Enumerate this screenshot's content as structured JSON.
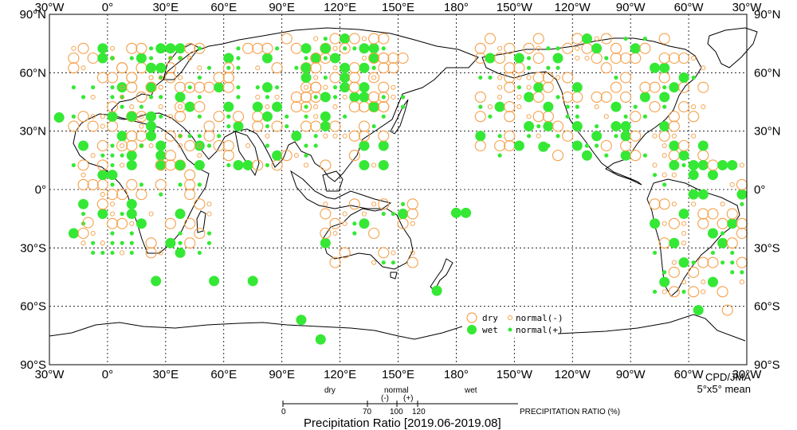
{
  "map": {
    "lon_labels": [
      "30°W",
      "0°",
      "30°E",
      "60°E",
      "90°E",
      "120°E",
      "150°E",
      "180°",
      "150°W",
      "120°W",
      "90°W",
      "60°W",
      "30°W"
    ],
    "lat_labels": [
      "90°N",
      "60°N",
      "30°N",
      "0°",
      "30°S",
      "60°S",
      "90°S"
    ],
    "colors": {
      "dry": "#f5a04a",
      "wet": "#35e835",
      "coast": "#000000",
      "grid": "#000000"
    }
  },
  "legend": {
    "dry": "dry",
    "wet": "wet",
    "normal_minus": "normal(-)",
    "normal_plus": "normal(+)"
  },
  "credit": {
    "line1": "CPD/JMA",
    "line2": "5°x5° mean"
  },
  "scale": {
    "dry_label": "dry",
    "normal_label": "normal",
    "normal_minus": "(-)",
    "normal_plus": "(+)",
    "wet_label": "wet",
    "ticks": [
      "0",
      "70",
      "100",
      "120"
    ],
    "axis_title": "PRECIPITATION RATIO  (%)"
  },
  "title": "Precipitation Ratio [2019.06-2019.08]"
}
